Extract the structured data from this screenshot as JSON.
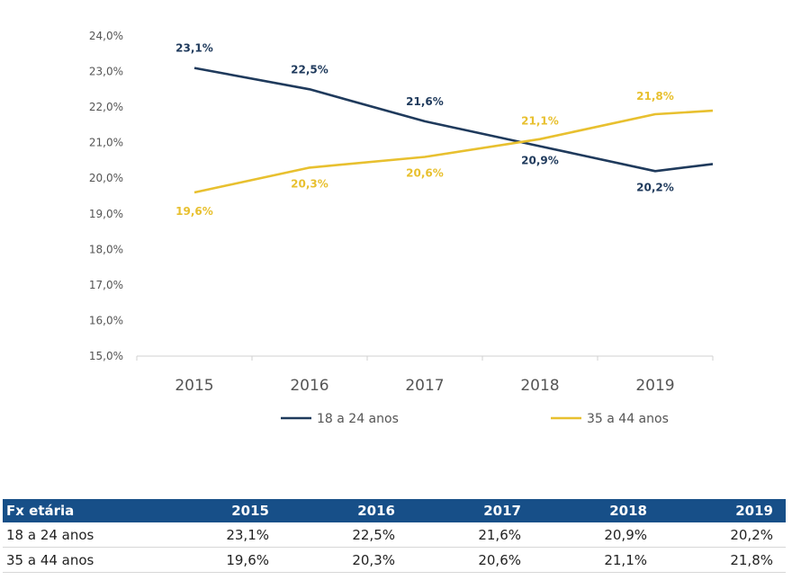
{
  "chart_data": {
    "type": "line",
    "categories": [
      "2015",
      "2016",
      "2017",
      "2018",
      "2019"
    ],
    "ylim": [
      15.0,
      24.0
    ],
    "ytick_labels": [
      "24,0%",
      "23,0%",
      "22,0%",
      "21,0%",
      "20,0%",
      "19,0%",
      "18,0%",
      "17,0%",
      "16,0%",
      "15,0%"
    ],
    "series": [
      {
        "name": "18 a 24 anos",
        "color": "#1f3a5c",
        "values": [
          23.1,
          22.5,
          21.6,
          20.9,
          20.2
        ],
        "labels": [
          "23,1%",
          "22,5%",
          "21,6%",
          "20,9%",
          "20,2%"
        ]
      },
      {
        "name": "35 a 44 anos",
        "color": "#e8c02f",
        "values": [
          19.6,
          20.3,
          20.6,
          21.1,
          21.8
        ],
        "labels": [
          "19,6%",
          "20,3%",
          "20,6%",
          "21,1%",
          "21,8%"
        ]
      }
    ]
  },
  "table": {
    "header_label": "Fx etária",
    "years": [
      "2015",
      "2016",
      "2017",
      "2018",
      "2019"
    ],
    "rows": [
      {
        "label": "18 a 24 anos",
        "values": [
          "23,1%",
          "22,5%",
          "21,6%",
          "20,9%",
          "20,2%"
        ]
      },
      {
        "label": "35 a 44 anos",
        "values": [
          "19,6%",
          "20,3%",
          "20,6%",
          "21,1%",
          "21,8%"
        ]
      }
    ]
  }
}
